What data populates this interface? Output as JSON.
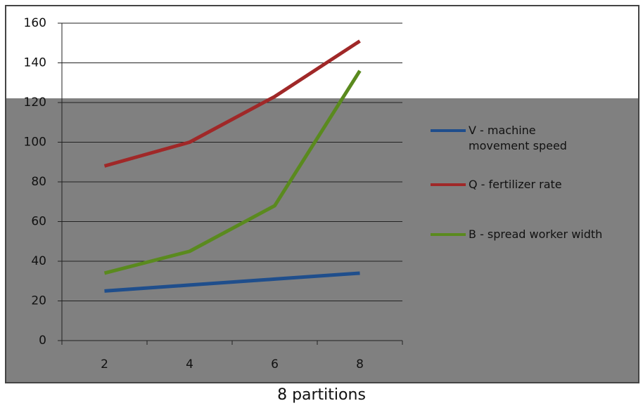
{
  "chart_data": {
    "type": "line",
    "x_label": "8 partitions",
    "categories": [
      "2",
      "4",
      "6",
      "8"
    ],
    "series": [
      {
        "name": "V - machine movement speed",
        "color": "#1f4e8c",
        "values": [
          25,
          28,
          31,
          34
        ]
      },
      {
        "name": "Q - fertilizer rate",
        "color": "#a02828",
        "values": [
          88,
          100,
          123,
          151
        ]
      },
      {
        "name": "B - spread worker width",
        "color": "#5a8a1e",
        "values": [
          34,
          45,
          68,
          136
        ]
      }
    ],
    "ylim": [
      0,
      160
    ],
    "yticks": [
      0,
      20,
      40,
      60,
      80,
      100,
      120,
      140,
      160
    ],
    "grid": true
  }
}
